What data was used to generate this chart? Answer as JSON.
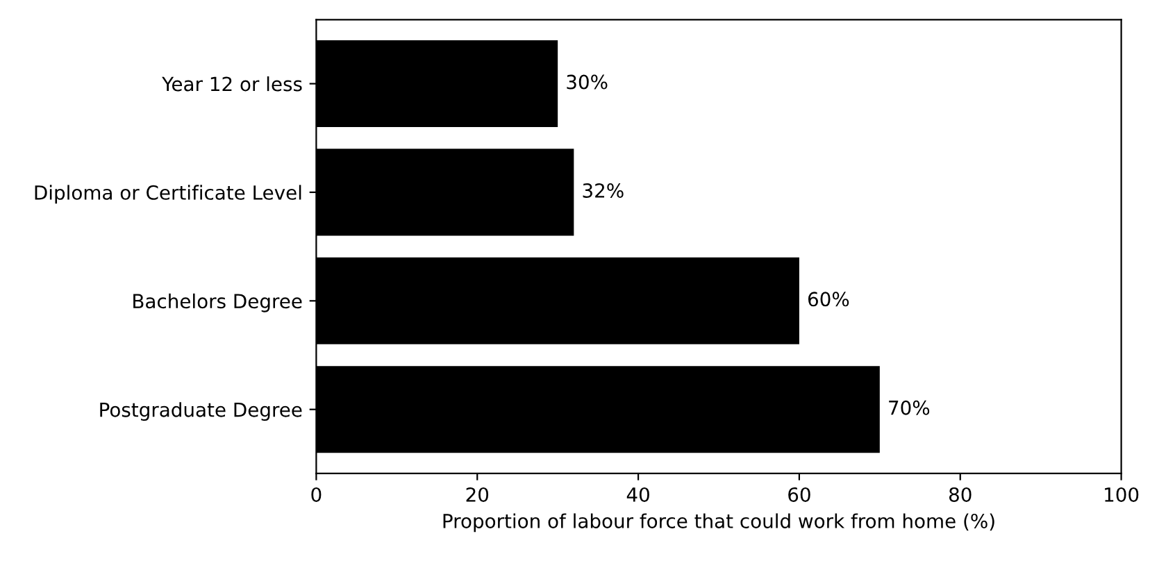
{
  "chart_data": {
    "type": "bar",
    "orientation": "horizontal",
    "categories": [
      "Year 12 or less",
      "Diploma or Certificate Level",
      "Bachelors Degree",
      "Postgraduate Degree"
    ],
    "values": [
      30,
      32,
      60,
      70
    ],
    "value_labels": [
      "30%",
      "32%",
      "60%",
      "70%"
    ],
    "color": "#000000",
    "xlabel": "Proportion of labour force that could work from home (%)",
    "xlim": [
      0,
      100
    ],
    "xticks": [
      0,
      20,
      40,
      60,
      80,
      100
    ],
    "grid": false,
    "legend": false
  }
}
